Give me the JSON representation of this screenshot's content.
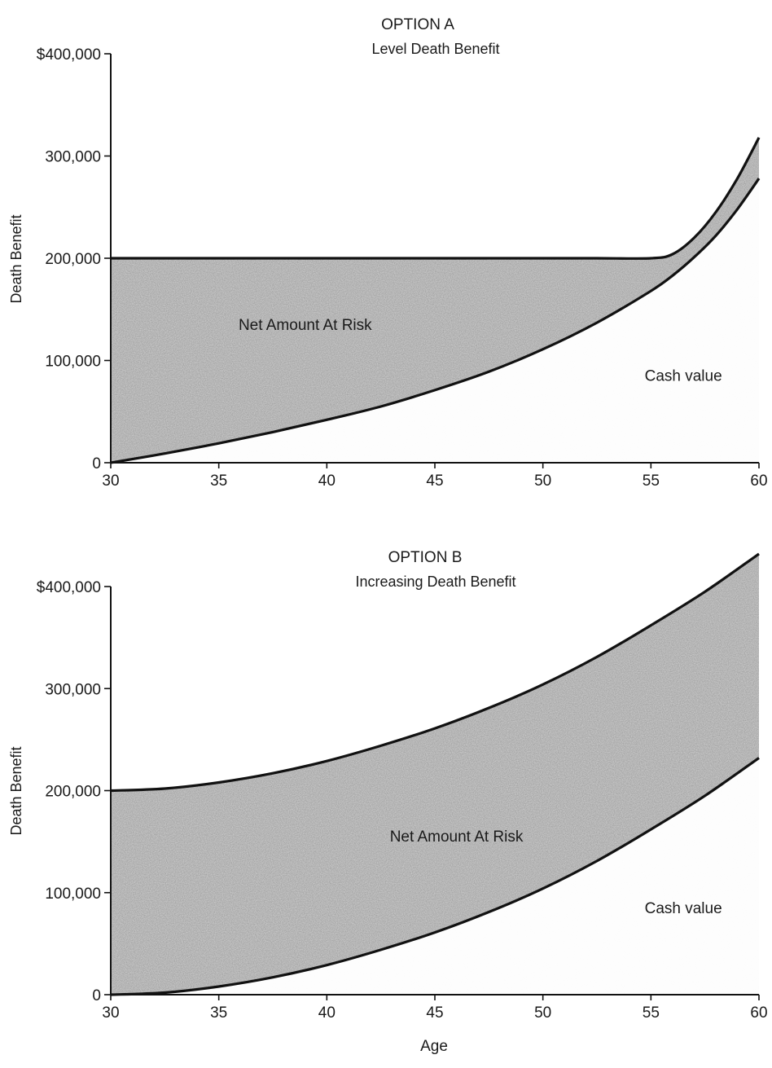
{
  "chart_data": [
    {
      "type": "area",
      "title": "OPTION A",
      "subtitle": "Level Death Benefit",
      "ylabel": "Death Benefit",
      "xlabel": "",
      "xlim": [
        30,
        60
      ],
      "ylim": [
        0,
        400000
      ],
      "x_ticks": [
        30,
        35,
        40,
        45,
        50,
        55,
        60
      ],
      "y_ticks": [
        {
          "value": 0,
          "label": "0"
        },
        {
          "value": 100000,
          "label": "100,000"
        },
        {
          "value": 200000,
          "label": "200,000"
        },
        {
          "value": 300000,
          "label": "300,000"
        },
        {
          "value": 400000,
          "label": "$400,000"
        }
      ],
      "x": [
        30,
        32.5,
        35,
        37.5,
        40,
        42.5,
        45,
        47.5,
        50,
        52.5,
        55,
        56,
        57,
        58,
        59,
        60
      ],
      "series": [
        {
          "key": "death_benefit",
          "values": [
            200000,
            200000,
            200000,
            200000,
            200000,
            200000,
            200000,
            200000,
            200000,
            200000,
            200000,
            204000,
            220000,
            245000,
            278000,
            318000
          ]
        },
        {
          "key": "cash_value",
          "values": [
            0,
            9000,
            19000,
            30000,
            42000,
            55000,
            71000,
            89000,
            111000,
            137000,
            168000,
            183000,
            201000,
            222000,
            248000,
            278000
          ]
        }
      ],
      "annotations": [
        {
          "text": "Net Amount At Risk",
          "x": 39,
          "y": 130000
        },
        {
          "text": "Cash value",
          "x": 56.5,
          "y": 80000
        }
      ]
    },
    {
      "type": "area",
      "title": "OPTION B",
      "subtitle": "Increasing Death Benefit",
      "ylabel": "Death Benefit",
      "xlabel": "Age",
      "xlim": [
        30,
        60
      ],
      "ylim": [
        0,
        400000
      ],
      "x_ticks": [
        30,
        35,
        40,
        45,
        50,
        55,
        60
      ],
      "y_ticks": [
        {
          "value": 0,
          "label": "0"
        },
        {
          "value": 100000,
          "label": "100,000"
        },
        {
          "value": 200000,
          "label": "200,000"
        },
        {
          "value": 300000,
          "label": "300,000"
        },
        {
          "value": 400000,
          "label": "$400,000"
        }
      ],
      "x": [
        30,
        32.5,
        35,
        37.5,
        40,
        42.5,
        45,
        47.5,
        50,
        52.5,
        55,
        57.5,
        60
      ],
      "series": [
        {
          "key": "death_benefit",
          "values": [
            200000,
            202000,
            208000,
            217000,
            229000,
            244000,
            261000,
            281000,
            304000,
            331000,
            362000,
            395000,
            432000
          ]
        },
        {
          "key": "cash_value",
          "values": [
            0,
            2000,
            8000,
            17000,
            29000,
            44000,
            61000,
            81000,
            104000,
            131000,
            162000,
            195000,
            232000
          ]
        }
      ],
      "annotations": [
        {
          "text": "Net Amount At Risk",
          "x": 46,
          "y": 150000
        },
        {
          "text": "Cash value",
          "x": 56.5,
          "y": 80000
        }
      ]
    }
  ],
  "colors": {
    "band_fill": "#9a9a9a",
    "line": "#111111"
  }
}
